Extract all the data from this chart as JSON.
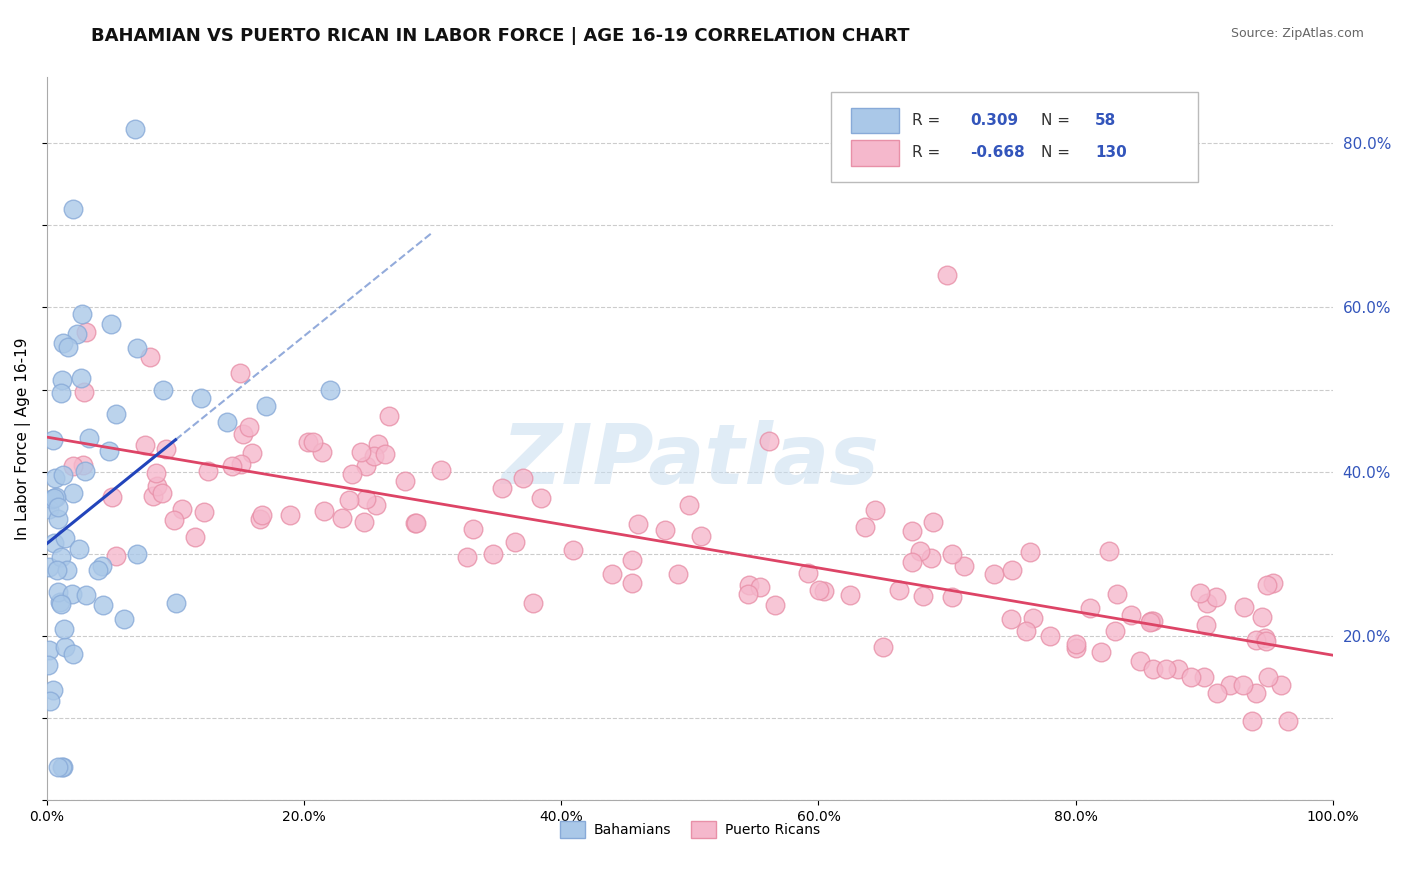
{
  "title": "BAHAMIAN VS PUERTO RICAN IN LABOR FORCE | AGE 16-19 CORRELATION CHART",
  "source": "Source: ZipAtlas.com",
  "ylabel": "In Labor Force | Age 16-19",
  "xlim": [
    0.0,
    1.0
  ],
  "ylim": [
    0.0,
    0.88
  ],
  "x_ticks": [
    0.0,
    0.2,
    0.4,
    0.6,
    0.8,
    1.0
  ],
  "x_tick_labels": [
    "0.0%",
    "20.0%",
    "40.0%",
    "60.0%",
    "80.0%",
    "100.0%"
  ],
  "y_ticks": [
    0.2,
    0.4,
    0.6,
    0.8
  ],
  "y_tick_labels": [
    "20.0%",
    "40.0%",
    "60.0%",
    "80.0%"
  ],
  "bahamian_color": "#aac8e8",
  "puerto_rican_color": "#f5b8cc",
  "bahamian_edge": "#88aad8",
  "puerto_rican_edge": "#e890a8",
  "trend_blue": "#2244bb",
  "trend_blue_dashed": "#6688cc",
  "trend_pink": "#dd4466",
  "R_blue": 0.309,
  "N_blue": 58,
  "R_pink": -0.668,
  "N_pink": 130,
  "background_color": "#ffffff",
  "grid_color": "#cccccc",
  "title_fontsize": 13,
  "axis_label_fontsize": 11,
  "tick_fontsize": 10,
  "watermark": "ZIPatlas",
  "watermark_color": "#c8ddf0",
  "legend_color": "#3355bb"
}
